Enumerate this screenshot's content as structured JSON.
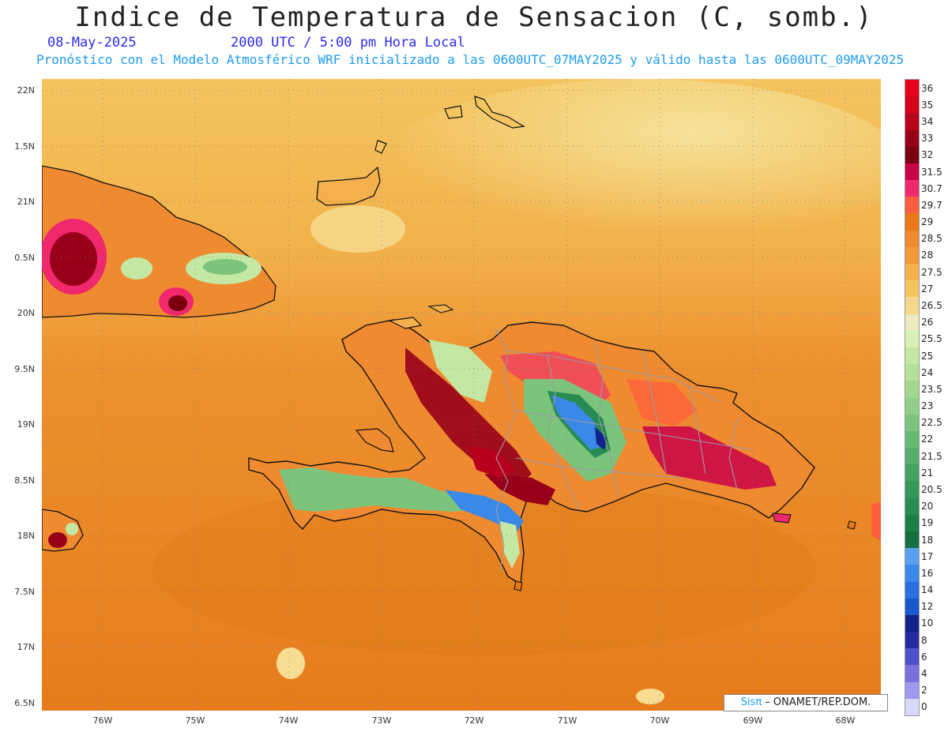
{
  "header": {
    "title": "Indice de Temperatura de Sensacion (C, somb.)",
    "date": "08-May-2025",
    "time": "2000 UTC / 5:00 pm Hora Local",
    "model": "Pronóstico con el Modelo Atmosférico WRF inicializado a las 0600UTC_07MAY2025 y válido hasta las  0600UTC_09MAY2025"
  },
  "axes": {
    "lat_labels": [
      "22N",
      "1.5N",
      "21N",
      "0.5N",
      "20N",
      "9.5N",
      "19N",
      "8.5N",
      "18N",
      "7.5N",
      "17N",
      "6.5N"
    ],
    "lon_labels": [
      "76W",
      "75W",
      "74W",
      "73W",
      "72W",
      "71W",
      "70W",
      "69W",
      "68W"
    ]
  },
  "legend": {
    "labels": [
      "36",
      "35",
      "34",
      "33",
      "32",
      "31.5",
      "30.7",
      "29.7",
      "29",
      "28.5",
      "28",
      "27.5",
      "27",
      "26.5",
      "26",
      "25.5",
      "25",
      "24",
      "23.5",
      "23",
      "22.5",
      "22",
      "21.5",
      "21",
      "20.5",
      "20",
      "19",
      "18",
      "17",
      "16",
      "14",
      "12",
      "10",
      "8",
      "6",
      "4",
      "2",
      "0"
    ],
    "colors": [
      "#e8001a",
      "#d4001a",
      "#b8001c",
      "#98001a",
      "#7a0010",
      "#c80048",
      "#f0286e",
      "#ff5e3c",
      "#e87818",
      "#f08a30",
      "#f29a38",
      "#f4b04c",
      "#f4c45e",
      "#f6d88c",
      "#eeeac0",
      "#d8f0b4",
      "#c4e8a4",
      "#b4e09a",
      "#a2d890",
      "#8fcf86",
      "#7cc47c",
      "#68b972",
      "#56ae6a",
      "#44a362",
      "#34985a",
      "#288c52",
      "#1a8048",
      "#147040",
      "#5aa0f0",
      "#3a88e8",
      "#2a6ee0",
      "#1a56cc",
      "#12228a",
      "#2a2aa0",
      "#5050c8",
      "#7a70dc",
      "#a098ee",
      "#d8d8fa"
    ]
  },
  "credit": {
    "sis": "Sisπ",
    "text": " – ONAMET/REP.DOM."
  },
  "colors": {
    "ocean": "#f29a38",
    "ocean_south": "#e8801e",
    "ocean_north": "#f4c45e",
    "coast": "#111111",
    "border": "#9a9aa6"
  }
}
